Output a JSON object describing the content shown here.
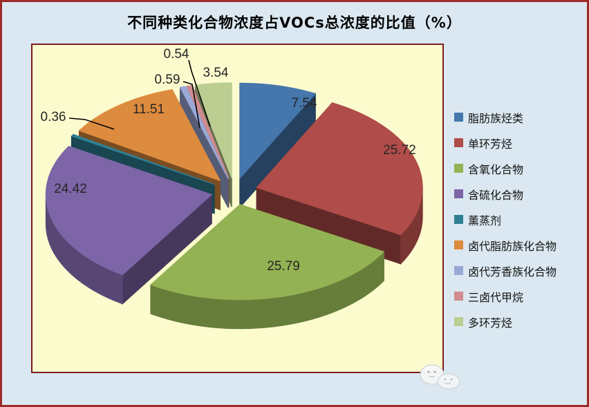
{
  "title": "不同种类化合物浓度占VOCs总浓度的比值（%）",
  "chart_data": {
    "type": "pie",
    "style": "3d-exploded",
    "title": "不同种类化合物浓度占VOCs总浓度的比值（%）",
    "unit": "%",
    "legend_position": "right",
    "data_labels": "values shown on/next to slices",
    "slices": [
      {
        "label": "脂肪族烃类",
        "value": 7.54,
        "color": "#4576ac"
      },
      {
        "label": "单环芳烃",
        "value": 25.72,
        "color": "#b04c49"
      },
      {
        "label": "含氧化合物",
        "value": 25.79,
        "color": "#93b253"
      },
      {
        "label": "含硫化合物",
        "value": 24.42,
        "color": "#7d65a7"
      },
      {
        "label": "薰蒸剂",
        "value": 0.36,
        "color": "#2f7f93"
      },
      {
        "label": "卤代脂肪族化合物",
        "value": 11.51,
        "color": "#dd8b3e"
      },
      {
        "label": "卤代芳香族化合物",
        "value": 0.59,
        "color": "#9aa8d6"
      },
      {
        "label": "三卤代甲烷",
        "value": 0.54,
        "color": "#d08c8e"
      },
      {
        "label": "多环芳烃",
        "value": 3.54,
        "color": "#bccd92"
      }
    ]
  },
  "colors": {
    "page_bg": "#dbe8f1",
    "outer_border": "#9c2b26",
    "plot_bg": "#fbfbce",
    "plot_border": "#7b1d20",
    "value_text": "#262626",
    "legend_text": "#141414"
  }
}
